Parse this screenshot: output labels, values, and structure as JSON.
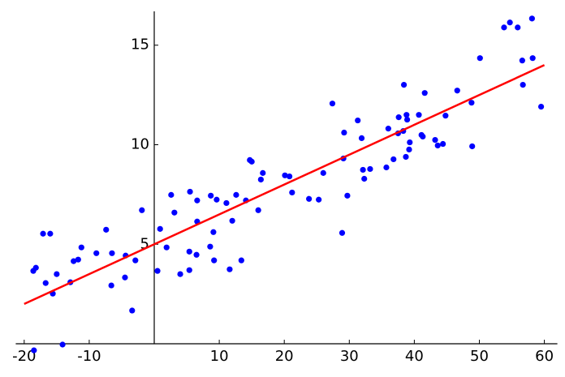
{
  "chart_data": {
    "type": "scatter",
    "xlim": [
      -21.3,
      62
    ],
    "ylim": [
      -0.5,
      16.7
    ],
    "xticks": [
      -20,
      -10,
      10,
      20,
      30,
      40,
      50,
      60
    ],
    "yticks": [
      5,
      10,
      15
    ],
    "points": {
      "color": "#0000ff",
      "x": [
        -18.5,
        -18.6,
        -18.2,
        -17.1,
        -16.0,
        -16.7,
        -15.6,
        -15.0,
        -14.1,
        -12.9,
        -12.4,
        -11.7,
        -11.2,
        -8.9,
        -7.4,
        -6.6,
        -6.5,
        -4.5,
        -4.4,
        -3.4,
        -2.9,
        -1.9,
        0.5,
        0.9,
        1.9,
        2.6,
        3.1,
        4.0,
        5.5,
        5.4,
        5.4,
        6.5,
        6.6,
        6.6,
        8.6,
        8.7,
        9.1,
        9.2,
        9.6,
        11.1,
        11.6,
        12.0,
        12.6,
        13.4,
        14.1,
        14.7,
        15.0,
        16.0,
        16.4,
        16.7,
        20.1,
        20.8,
        21.2,
        23.8,
        25.3,
        26.0,
        27.4,
        28.9,
        29.1,
        29.2,
        29.7,
        31.3,
        31.9,
        32.1,
        32.3,
        33.2,
        35.7,
        36.0,
        36.8,
        37.5,
        37.6,
        38.3,
        38.4,
        38.7,
        38.8,
        38.9,
        39.2,
        39.3,
        40.7,
        41.1,
        41.3,
        41.6,
        43.2,
        43.6,
        44.4,
        44.8,
        46.6,
        48.8,
        48.9,
        50.1,
        53.8,
        54.7,
        55.9,
        56.6,
        56.7,
        58.1,
        58.2,
        59.5
      ],
      "y": [
        -0.33,
        3.66,
        3.82,
        5.53,
        5.53,
        3.05,
        2.52,
        3.5,
        -0.04,
        3.09,
        4.15,
        4.23,
        4.84,
        4.55,
        5.73,
        2.93,
        4.55,
        3.33,
        4.43,
        1.67,
        4.19,
        6.71,
        3.66,
        5.77,
        4.84,
        7.48,
        6.59,
        3.5,
        7.64,
        4.63,
        3.7,
        4.47,
        6.14,
        7.2,
        4.88,
        7.44,
        5.61,
        4.19,
        7.24,
        7.07,
        3.74,
        6.18,
        7.48,
        4.19,
        7.2,
        9.23,
        9.15,
        6.71,
        8.25,
        8.58,
        8.46,
        8.41,
        7.6,
        7.28,
        7.24,
        8.58,
        12.07,
        5.57,
        9.31,
        10.61,
        7.44,
        11.22,
        10.33,
        8.74,
        8.29,
        8.78,
        8.86,
        10.81,
        9.27,
        10.57,
        11.38,
        10.69,
        13.01,
        9.39,
        11.5,
        11.26,
        9.76,
        10.12,
        11.5,
        10.49,
        10.41,
        12.6,
        10.24,
        9.96,
        10.04,
        11.46,
        12.72,
        12.11,
        9.92,
        14.35,
        15.89,
        16.14,
        15.89,
        14.23,
        13.01,
        16.34,
        14.35,
        11.91
      ]
    },
    "line": {
      "color": "#ff0000",
      "x": [
        -20,
        60
      ],
      "y": [
        2.0,
        14.0
      ]
    }
  }
}
